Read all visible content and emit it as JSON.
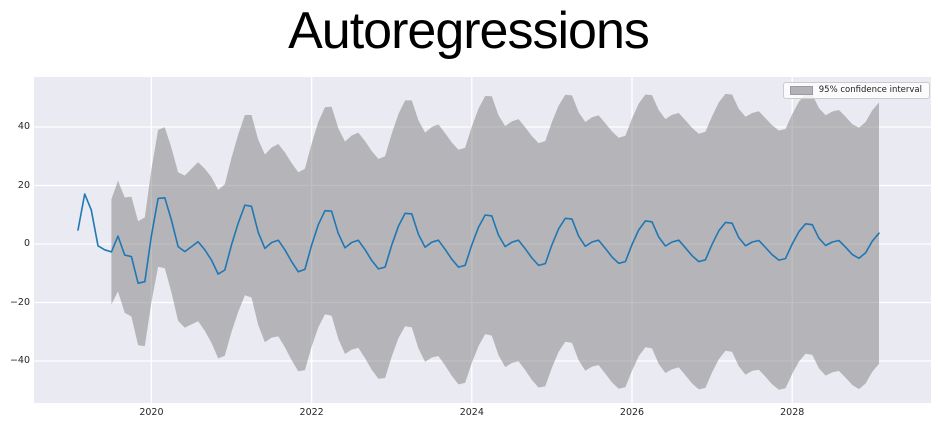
{
  "title": "Autoregressions",
  "legend": {
    "label": "95% confidence interval",
    "swatch_color": "#b2b2b7"
  },
  "chart_data": {
    "type": "line",
    "title": "Autoregressions",
    "xlabel": "",
    "ylabel": "",
    "x_unit": "monthly time points",
    "x_note": "observed series starts 2019-02; forecast with confidence band starts 2019-07 and ends 2029-02",
    "xticks": [
      "2020",
      "2022",
      "2024",
      "2026",
      "2028"
    ],
    "yticks": [
      "40",
      "20",
      "0",
      "−20",
      "−40"
    ],
    "ytick_values": [
      40,
      20,
      0,
      -20,
      -40
    ],
    "xlim_years": [
      2018.57,
      2029.77
    ],
    "ylim": [
      -54.5,
      57
    ],
    "grid": true,
    "plot_bg_color": "#eaeaf2",
    "grid_color": "#ffffff",
    "legend_position": "upper right",
    "series": [
      {
        "name": "observed",
        "color": "#1f77b4",
        "start": "2019-02",
        "values": [
          4.8,
          17.1,
          11.6,
          -0.6,
          -2.0
        ]
      },
      {
        "name": "forecast",
        "color": "#1f77b4",
        "start": "2019-07",
        "values": [
          -2.7,
          2.7,
          -3.8,
          -4.3,
          -13.4,
          -12.9,
          2.8,
          15.6,
          15.8,
          8.2,
          -0.9,
          -2.6,
          -0.9,
          0.8,
          -2.0,
          -5.5,
          -10.3,
          -8.9,
          -0.3,
          7.1,
          13.3,
          12.9,
          4.0,
          -1.5,
          0.5,
          1.3,
          -2.0,
          -6.0,
          -9.5,
          -8.7,
          -0.4,
          6.6,
          11.4,
          11.2,
          3.6,
          -1.3,
          0.5,
          1.3,
          -1.9,
          -5.6,
          -8.5,
          -7.9,
          -0.4,
          6.1,
          10.5,
          10.3,
          3.3,
          -1.1,
          0.6,
          1.3,
          -1.8,
          -5.2,
          -7.9,
          -7.3,
          -0.3,
          5.7,
          9.9,
          9.6,
          3.0,
          -0.9,
          0.6,
          1.3,
          -1.6,
          -4.8,
          -7.3,
          -6.7,
          -0.3,
          5.2,
          8.8,
          8.5,
          2.7,
          -0.8,
          0.7,
          1.3,
          -1.5,
          -4.4,
          -6.6,
          -6.0,
          -0.2,
          4.8,
          7.9,
          7.6,
          2.4,
          -0.7,
          0.7,
          1.3,
          -1.3,
          -4.0,
          -6.0,
          -5.4,
          -0.1,
          4.5,
          7.4,
          7.1,
          2.2,
          -0.6,
          0.7,
          1.2,
          -1.2,
          -3.7,
          -5.5,
          -5.0,
          0.0,
          4.2,
          6.9,
          6.6,
          2.0,
          -0.5,
          0.7,
          1.2,
          -1.1,
          -3.6,
          -4.9,
          -3.0,
          1.0,
          3.7
        ]
      },
      {
        "name": "95% confidence interval",
        "kind": "band",
        "color": "#808080",
        "opacity": 0.5,
        "start": "2019-07",
        "note": "band bounds = forecast value ± half_width",
        "half_width": [
          18.0,
          18.9,
          19.7,
          20.5,
          21.2,
          22.0,
          22.7,
          23.4,
          24.1,
          24.7,
          25.4,
          26.0,
          26.6,
          27.2,
          27.7,
          28.3,
          28.8,
          29.3,
          29.8,
          30.3,
          30.8,
          31.2,
          31.7,
          32.1,
          32.5,
          32.9,
          33.3,
          33.7,
          34.0,
          34.4,
          34.7,
          35.1,
          35.4,
          35.7,
          36.0,
          36.3,
          36.6,
          36.8,
          37.1,
          37.4,
          37.6,
          37.9,
          38.1,
          38.3,
          38.6,
          38.8,
          39.0,
          39.2,
          39.4,
          39.6,
          39.7,
          39.9,
          40.1,
          40.2,
          40.4,
          40.6,
          40.7,
          40.9,
          41.0,
          41.2,
          41.3,
          41.4,
          41.5,
          41.7,
          41.8,
          41.9,
          42.0,
          42.1,
          42.2,
          42.3,
          42.4,
          42.5,
          42.6,
          42.7,
          42.8,
          42.9,
          42.9,
          43.0,
          43.1,
          43.2,
          43.2,
          43.3,
          43.4,
          43.4,
          43.5,
          43.5,
          43.6,
          43.7,
          43.7,
          43.8,
          43.8,
          43.9,
          43.9,
          44.0,
          44.0,
          44.1,
          44.1,
          44.2,
          44.2,
          44.3,
          44.3,
          44.3,
          44.4,
          44.4,
          44.4,
          44.5,
          44.5,
          44.5,
          44.6,
          44.6,
          44.6,
          44.6,
          44.7,
          44.7,
          44.7,
          44.7
        ]
      }
    ]
  }
}
